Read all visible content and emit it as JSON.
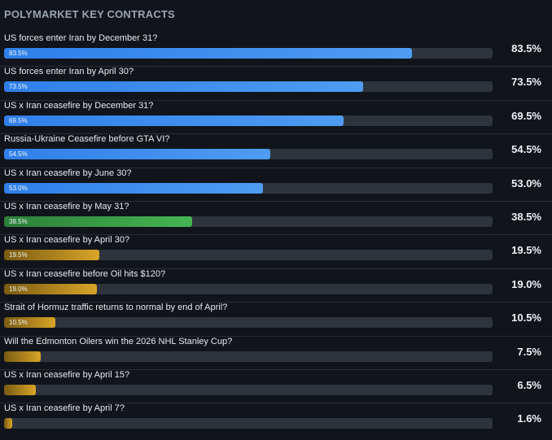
{
  "title": "POLYMARKET KEY CONTRACTS",
  "colors": {
    "blue": "#3b8cee",
    "green": "#41ad4e",
    "gold": "#d29f27",
    "track": "#2e343c",
    "background": "#11151b"
  },
  "contracts": [
    {
      "label": "US forces enter Iran by December 31?",
      "value": 83.5,
      "pct": "83.5%",
      "bar_label": "83.5%",
      "color": "blue"
    },
    {
      "label": "US forces enter Iran by April 30?",
      "value": 73.5,
      "pct": "73.5%",
      "bar_label": "73.5%",
      "color": "blue"
    },
    {
      "label": "US x Iran ceasefire by December 31?",
      "value": 69.5,
      "pct": "69.5%",
      "bar_label": "69.5%",
      "color": "blue"
    },
    {
      "label": "Russia-Ukraine Ceasefire before GTA VI?",
      "value": 54.5,
      "pct": "54.5%",
      "bar_label": "54.5%",
      "color": "blue"
    },
    {
      "label": "US x Iran ceasefire by June 30?",
      "value": 53.0,
      "pct": "53.0%",
      "bar_label": "53.0%",
      "color": "blue"
    },
    {
      "label": "US x Iran ceasefire by May 31?",
      "value": 38.5,
      "pct": "38.5%",
      "bar_label": "38.5%",
      "color": "green"
    },
    {
      "label": "US x Iran ceasefire by April 30?",
      "value": 19.5,
      "pct": "19.5%",
      "bar_label": "19.5%",
      "color": "gold"
    },
    {
      "label": "US x Iran ceasefire before Oil hits $120?",
      "value": 19.0,
      "pct": "19.0%",
      "bar_label": "19.0%",
      "color": "gold"
    },
    {
      "label": "Strait of Hormuz traffic returns to normal by end of April?",
      "value": 10.5,
      "pct": "10.5%",
      "bar_label": "10.5%",
      "color": "gold"
    },
    {
      "label": "Will the Edmonton Oilers win the 2026 NHL Stanley Cup?",
      "value": 7.5,
      "pct": "7.5%",
      "bar_label": "",
      "color": "gold"
    },
    {
      "label": "US x Iran ceasefire by April 15?",
      "value": 6.5,
      "pct": "6.5%",
      "bar_label": "",
      "color": "gold"
    },
    {
      "label": "US x Iran ceasefire by April 7?",
      "value": 1.6,
      "pct": "1.6%",
      "bar_label": "",
      "color": "gold"
    }
  ]
}
